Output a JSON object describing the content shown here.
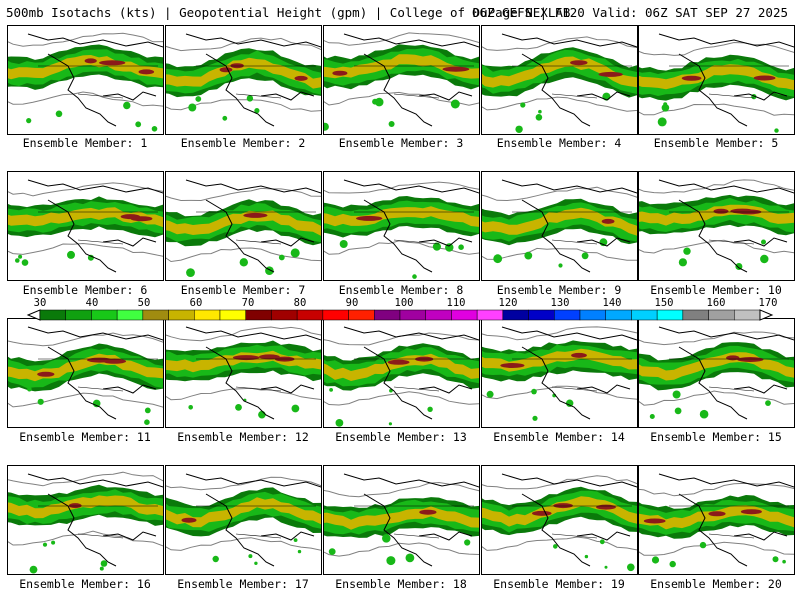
{
  "header": {
    "left": "500mb Isotachs (kts) | Geopotential Height (gpm) | College of DuPage NEXLAB",
    "right": "06Z GEFS | F120 Valid: 06Z SAT SEP 27 2025"
  },
  "members": [
    {
      "label": "Ensemble Member: 1"
    },
    {
      "label": "Ensemble Member: 2"
    },
    {
      "label": "Ensemble Member: 3"
    },
    {
      "label": "Ensemble Member: 4"
    },
    {
      "label": "Ensemble Member: 5"
    },
    {
      "label": "Ensemble Member: 6"
    },
    {
      "label": "Ensemble Member: 7"
    },
    {
      "label": "Ensemble Member: 8"
    },
    {
      "label": "Ensemble Member: 9"
    },
    {
      "label": "Ensemble Member: 10"
    },
    {
      "label": "Ensemble Member: 11"
    },
    {
      "label": "Ensemble Member: 12"
    },
    {
      "label": "Ensemble Member: 13"
    },
    {
      "label": "Ensemble Member: 14"
    },
    {
      "label": "Ensemble Member: 15"
    },
    {
      "label": "Ensemble Member: 16"
    },
    {
      "label": "Ensemble Member: 17"
    },
    {
      "label": "Ensemble Member: 18"
    },
    {
      "label": "Ensemble Member: 19"
    },
    {
      "label": "Ensemble Member: 20"
    }
  ],
  "colorbar": {
    "labels": [
      "30",
      "40",
      "50",
      "60",
      "70",
      "80",
      "90",
      "100",
      "110",
      "120",
      "130",
      "140",
      "150",
      "160",
      "170"
    ],
    "colors": [
      "#0a7a0a",
      "#10a010",
      "#18c818",
      "#40ff40",
      "#a08c10",
      "#c8b400",
      "#ffe800",
      "#ffff00",
      "#800000",
      "#a00000",
      "#c80000",
      "#ff0000",
      "#ff2000",
      "#800080",
      "#a000a0",
      "#c000c0",
      "#e000e0",
      "#ff40ff",
      "#0000a0",
      "#0000c8",
      "#0040ff",
      "#0080ff",
      "#00a8ff",
      "#00d0ff",
      "#00ffff",
      "#808080",
      "#a0a0a0",
      "#c0c0c0"
    ]
  },
  "map_colors": {
    "jet_core": "#8b1a1a",
    "jet_mid": "#c8b400",
    "jet_outer": "#18b818",
    "jet_edge": "#0a7a0a",
    "height_contour": "#808080",
    "coastline": "#000000"
  }
}
